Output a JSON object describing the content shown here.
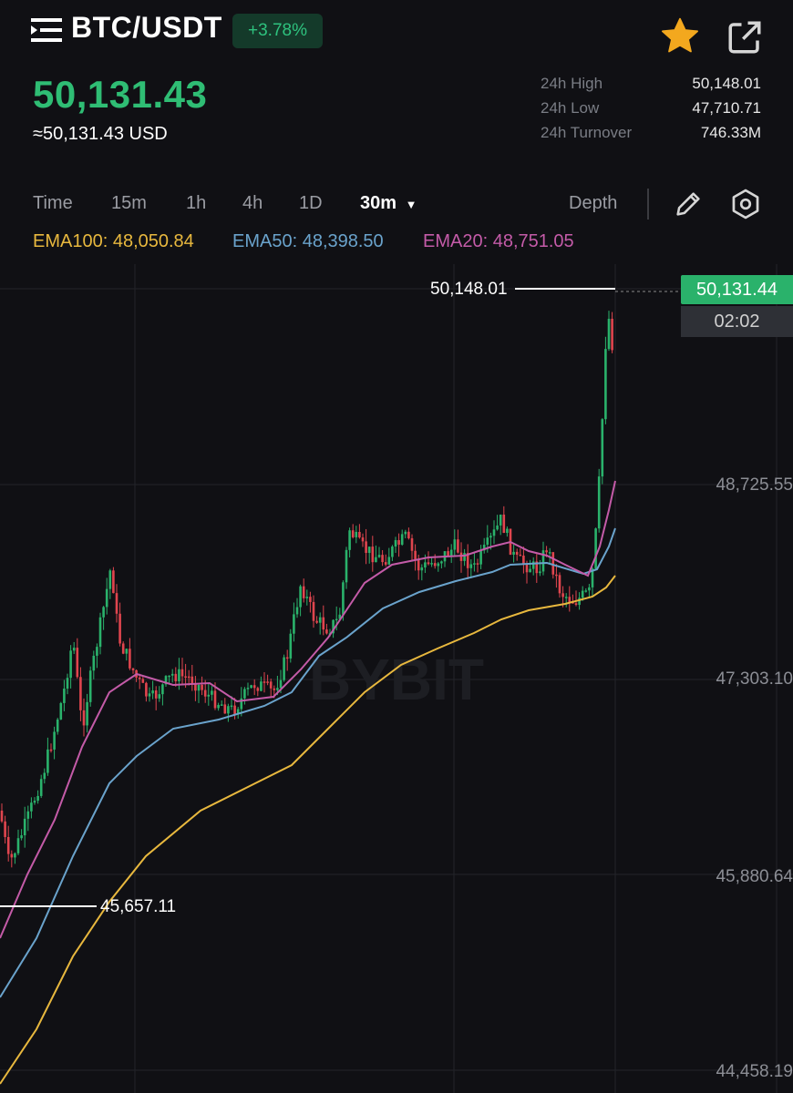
{
  "header": {
    "pair": "BTC/USDT",
    "change": "+3.78%",
    "menu_icon": "list-menu-icon",
    "favorite_icon": "star-icon",
    "share_icon": "external-link-icon"
  },
  "ticker": {
    "last_price": "50,131.43",
    "usd_price": "≈50,131.43 USD",
    "stats": [
      {
        "label": "24h High",
        "value": "50,148.01"
      },
      {
        "label": "24h Low",
        "value": "47,710.71"
      },
      {
        "label": "24h Turnover",
        "value": "746.33M"
      }
    ]
  },
  "toolbar": {
    "tabs": [
      "Time",
      "15m",
      "1h",
      "4h",
      "1D"
    ],
    "active_interval": "30m",
    "depth_label": "Depth",
    "draw_icon": "pencil-icon",
    "settings_icon": "hexagon-settings-icon"
  },
  "indicators": {
    "ema100": "EMA100: 48,050.84",
    "ema50": "EMA50: 48,398.50",
    "ema20": "EMA20: 48,751.05",
    "colors": {
      "ema100": "#e8b83e",
      "ema50": "#6aa3cc",
      "ema20": "#c45ba8"
    }
  },
  "chart": {
    "watermark": "BYBIT",
    "current_price_tag": "50,131.44",
    "countdown": "02:02",
    "high_marker": "50,148.01",
    "low_marker": "45,657.11",
    "y_labels": [
      "48,725.55",
      "47,303.10",
      "45,880.64",
      "44,458.19"
    ],
    "colors": {
      "up": "#2ab26b",
      "down": "#e0454e",
      "grid": "#23242a"
    }
  }
}
